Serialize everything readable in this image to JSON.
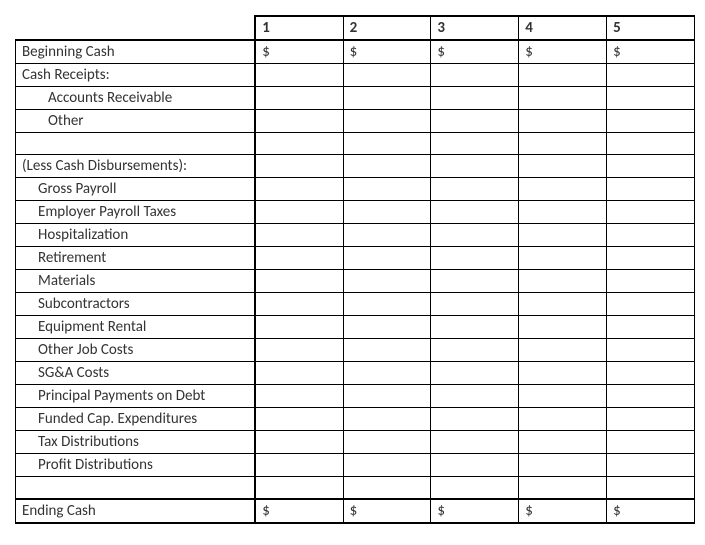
{
  "table": {
    "type": "table",
    "background_color": "#ffffff",
    "border_color": "#000000",
    "text_color": "#333333",
    "font_family": "Calibri",
    "font_size": 15,
    "columns": [
      "1",
      "2",
      "3",
      "4",
      "5"
    ],
    "rows": [
      {
        "label": "Beginning Cash",
        "indent": 0,
        "cells": [
          "$",
          "$",
          "$",
          "$",
          "$"
        ],
        "thick_top": false
      },
      {
        "label": "Cash Receipts:",
        "indent": 0,
        "cells": [
          "",
          "",
          "",
          "",
          ""
        ],
        "thick_top": false
      },
      {
        "label": "Accounts Receivable",
        "indent": 2,
        "cells": [
          "",
          "",
          "",
          "",
          ""
        ],
        "thick_top": false
      },
      {
        "label": "Other",
        "indent": 2,
        "cells": [
          "",
          "",
          "",
          "",
          ""
        ],
        "thick_top": false
      },
      {
        "label": "",
        "indent": 0,
        "cells": [
          "",
          "",
          "",
          "",
          ""
        ],
        "thick_top": false
      },
      {
        "label": "(Less Cash Disbursements):",
        "indent": 0,
        "cells": [
          "",
          "",
          "",
          "",
          ""
        ],
        "thick_top": false
      },
      {
        "label": "Gross Payroll",
        "indent": 1,
        "cells": [
          "",
          "",
          "",
          "",
          ""
        ],
        "thick_top": false
      },
      {
        "label": "Employer Payroll Taxes",
        "indent": 1,
        "cells": [
          "",
          "",
          "",
          "",
          ""
        ],
        "thick_top": false
      },
      {
        "label": "Hospitalization",
        "indent": 1,
        "cells": [
          "",
          "",
          "",
          "",
          ""
        ],
        "thick_top": false
      },
      {
        "label": "Retirement",
        "indent": 1,
        "cells": [
          "",
          "",
          "",
          "",
          ""
        ],
        "thick_top": false
      },
      {
        "label": "Materials",
        "indent": 1,
        "cells": [
          "",
          "",
          "",
          "",
          ""
        ],
        "thick_top": false
      },
      {
        "label": "Subcontractors",
        "indent": 1,
        "cells": [
          "",
          "",
          "",
          "",
          ""
        ],
        "thick_top": false
      },
      {
        "label": "Equipment Rental",
        "indent": 1,
        "cells": [
          "",
          "",
          "",
          "",
          ""
        ],
        "thick_top": false
      },
      {
        "label": "Other Job Costs",
        "indent": 1,
        "cells": [
          "",
          "",
          "",
          "",
          ""
        ],
        "thick_top": false
      },
      {
        "label": "SG&A Costs",
        "indent": 1,
        "cells": [
          "",
          "",
          "",
          "",
          ""
        ],
        "thick_top": false
      },
      {
        "label": "Principal Payments on Debt",
        "indent": 1,
        "cells": [
          "",
          "",
          "",
          "",
          ""
        ],
        "thick_top": false
      },
      {
        "label": "Funded Cap. Expenditures",
        "indent": 1,
        "cells": [
          "",
          "",
          "",
          "",
          ""
        ],
        "thick_top": false
      },
      {
        "label": "Tax Distributions",
        "indent": 1,
        "cells": [
          "",
          "",
          "",
          "",
          ""
        ],
        "thick_top": false
      },
      {
        "label": "Profit Distributions",
        "indent": 1,
        "cells": [
          "",
          "",
          "",
          "",
          ""
        ],
        "thick_top": false
      },
      {
        "label": "",
        "indent": 0,
        "cells": [
          "",
          "",
          "",
          "",
          ""
        ],
        "thick_top": false
      },
      {
        "label": "Ending Cash",
        "indent": 0,
        "cells": [
          "$",
          "$",
          "$",
          "$",
          "$"
        ],
        "thick_top": true
      }
    ]
  }
}
